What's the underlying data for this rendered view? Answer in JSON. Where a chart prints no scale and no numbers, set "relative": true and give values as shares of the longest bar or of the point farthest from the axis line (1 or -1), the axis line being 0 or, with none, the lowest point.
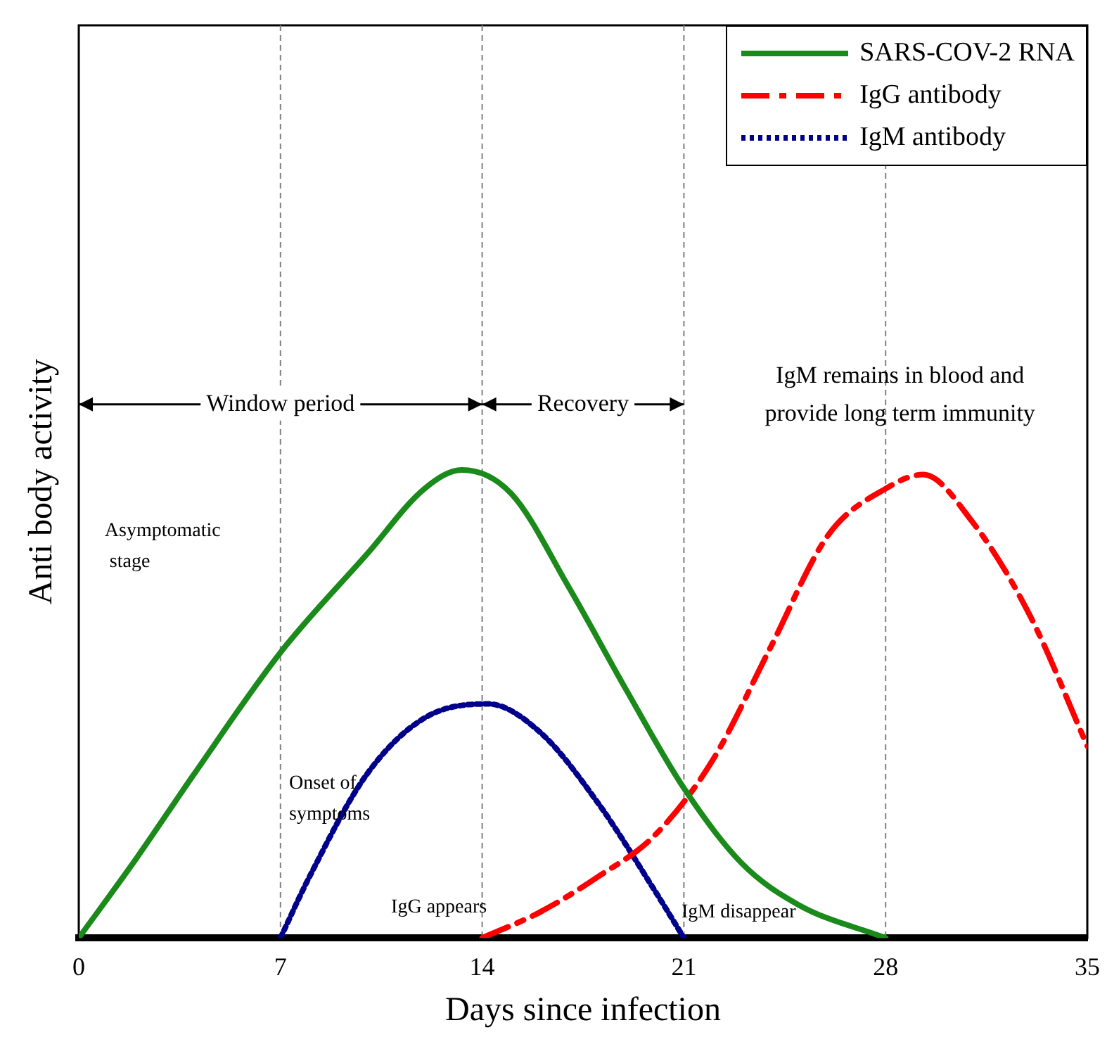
{
  "chart_data": {
    "type": "line",
    "relative": true,
    "xlabel": "Days since infection",
    "ylabel": "Anti body activity",
    "xlim": [
      0,
      35
    ],
    "xticks": [
      0,
      7,
      14,
      21,
      28,
      35
    ],
    "grid": false,
    "legend": "top right",
    "marker": "none",
    "series": [
      {
        "name": "SARS-COV-2 RNA",
        "color": "#1a8a1a",
        "line_style": "solid",
        "x": [
          0,
          2,
          4,
          7,
          10,
          12,
          13.3,
          15,
          17,
          19,
          21,
          23,
          25,
          28
        ],
        "values": [
          0,
          0.17,
          0.35,
          0.61,
          0.82,
          0.96,
          1,
          0.95,
          0.75,
          0.53,
          0.32,
          0.16,
          0.07,
          0
        ]
      },
      {
        "name": "IgG antibody",
        "color": "#ff0000",
        "line_style": "dashed",
        "x": [
          14,
          16,
          18,
          20,
          22,
          24,
          26,
          28,
          29.3,
          31,
          33,
          35
        ],
        "values": [
          0,
          0.055,
          0.13,
          0.22,
          0.38,
          0.62,
          0.86,
          0.96,
          0.99,
          0.89,
          0.69,
          0.41
        ]
      },
      {
        "name": "IgM antibody",
        "color": "#00008b",
        "line_style": "dotted",
        "x": [
          7,
          8,
          10,
          12,
          14.2,
          16,
          18,
          20,
          21
        ],
        "values": [
          0,
          0.13,
          0.35,
          0.47,
          0.5,
          0.44,
          0.29,
          0.1,
          0
        ]
      }
    ],
    "ref_lines": [
      {
        "axis": "x",
        "value": 7,
        "color": "#808080",
        "line_style": "dashed"
      },
      {
        "axis": "x",
        "value": 14,
        "color": "#808080",
        "line_style": "dashed"
      },
      {
        "axis": "x",
        "value": 21,
        "color": "#808080",
        "line_style": "dashed"
      },
      {
        "axis": "x",
        "value": 28,
        "color": "#808080",
        "line_style": "dashed"
      }
    ],
    "annotations": [
      "Window period",
      "Recovery",
      "IgM remains in blood and\nprovide long term immunity",
      "Asymptomatic\n stage",
      "Onset of\nsymptoms",
      "IgG appears",
      "IgM disappear"
    ]
  }
}
